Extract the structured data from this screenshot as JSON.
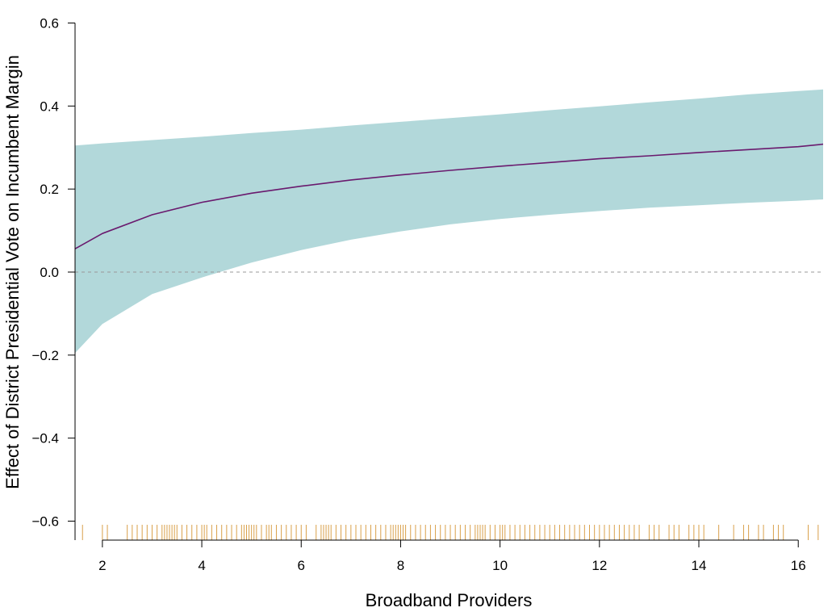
{
  "chart_data": {
    "type": "line",
    "title": "",
    "xlabel": "Broadband Providers",
    "ylabel": "Effect of District Presidential Vote on Incumbent Margin",
    "xlim": [
      1.45,
      16.5
    ],
    "ylim": [
      -0.65,
      0.6
    ],
    "xticks": [
      2,
      4,
      6,
      8,
      10,
      12,
      14,
      16
    ],
    "yticks": [
      0.6,
      0.4,
      0.2,
      0.0,
      -0.2,
      -0.4,
      -0.6
    ],
    "xtick_labels": [
      "2",
      "4",
      "6",
      "8",
      "10",
      "12",
      "14",
      "16"
    ],
    "ytick_labels": [
      "0.6",
      "0.4",
      "0.2",
      "0.0",
      "−0.2",
      "−0.4",
      "−0.6"
    ],
    "reference_line": {
      "y": 0.0,
      "style": "dashed"
    },
    "series": [
      {
        "kind": "estimate",
        "x": [
          1.45,
          2,
          3,
          4,
          5,
          6,
          7,
          8,
          9,
          10,
          11,
          12,
          13,
          14,
          15,
          16,
          16.5
        ],
        "y": [
          0.056,
          0.093,
          0.138,
          0.168,
          0.19,
          0.207,
          0.222,
          0.234,
          0.245,
          0.255,
          0.264,
          0.273,
          0.28,
          0.288,
          0.295,
          0.302,
          0.308
        ]
      },
      {
        "kind": "confidence_band",
        "x": [
          1.45,
          2,
          3,
          4,
          5,
          6,
          7,
          8,
          9,
          10,
          11,
          12,
          13,
          14,
          15,
          16,
          16.5
        ],
        "lower": [
          -0.195,
          -0.125,
          -0.053,
          -0.013,
          0.023,
          0.053,
          0.078,
          0.098,
          0.115,
          0.128,
          0.138,
          0.147,
          0.155,
          0.161,
          0.167,
          0.172,
          0.175
        ],
        "upper": [
          0.305,
          0.31,
          0.318,
          0.326,
          0.335,
          0.343,
          0.353,
          0.362,
          0.371,
          0.38,
          0.39,
          0.399,
          0.409,
          0.418,
          0.428,
          0.436,
          0.44
        ]
      }
    ],
    "rug_x": [
      1.6,
      2.0,
      2.1,
      2.5,
      2.6,
      2.7,
      2.8,
      2.9,
      3.0,
      3.1,
      3.2,
      3.25,
      3.3,
      3.35,
      3.4,
      3.45,
      3.5,
      3.6,
      3.7,
      3.8,
      3.9,
      4.0,
      4.05,
      4.1,
      4.2,
      4.3,
      4.4,
      4.5,
      4.6,
      4.7,
      4.8,
      4.85,
      4.9,
      4.95,
      5.0,
      5.05,
      5.1,
      5.2,
      5.3,
      5.35,
      5.4,
      5.5,
      5.6,
      5.7,
      5.8,
      5.9,
      6.0,
      6.1,
      6.3,
      6.4,
      6.45,
      6.5,
      6.55,
      6.6,
      6.7,
      6.8,
      6.9,
      7.0,
      7.1,
      7.2,
      7.3,
      7.4,
      7.5,
      7.6,
      7.7,
      7.8,
      7.85,
      7.9,
      7.95,
      8.0,
      8.05,
      8.1,
      8.2,
      8.3,
      8.4,
      8.5,
      8.6,
      8.7,
      8.8,
      8.9,
      9.0,
      9.1,
      9.2,
      9.3,
      9.4,
      9.5,
      9.55,
      9.6,
      9.65,
      9.7,
      9.8,
      9.9,
      10.0,
      10.05,
      10.1,
      10.2,
      10.3,
      10.4,
      10.5,
      10.6,
      10.7,
      10.8,
      10.9,
      11.0,
      11.1,
      11.2,
      11.3,
      11.4,
      11.5,
      11.6,
      11.7,
      11.8,
      11.9,
      12.0,
      12.1,
      12.2,
      12.3,
      12.4,
      12.5,
      12.6,
      12.7,
      12.8,
      13.0,
      13.1,
      13.2,
      13.4,
      13.5,
      13.6,
      13.8,
      13.9,
      14.0,
      14.1,
      14.4,
      14.7,
      14.9,
      15.0,
      15.2,
      15.3,
      15.5,
      15.6,
      15.7,
      16.2,
      16.4
    ],
    "colors": {
      "band": "#b2d8da",
      "line": "#6a1a6e",
      "rug": "#d9a04a",
      "reference": "#999999",
      "axis": "#000000"
    }
  }
}
